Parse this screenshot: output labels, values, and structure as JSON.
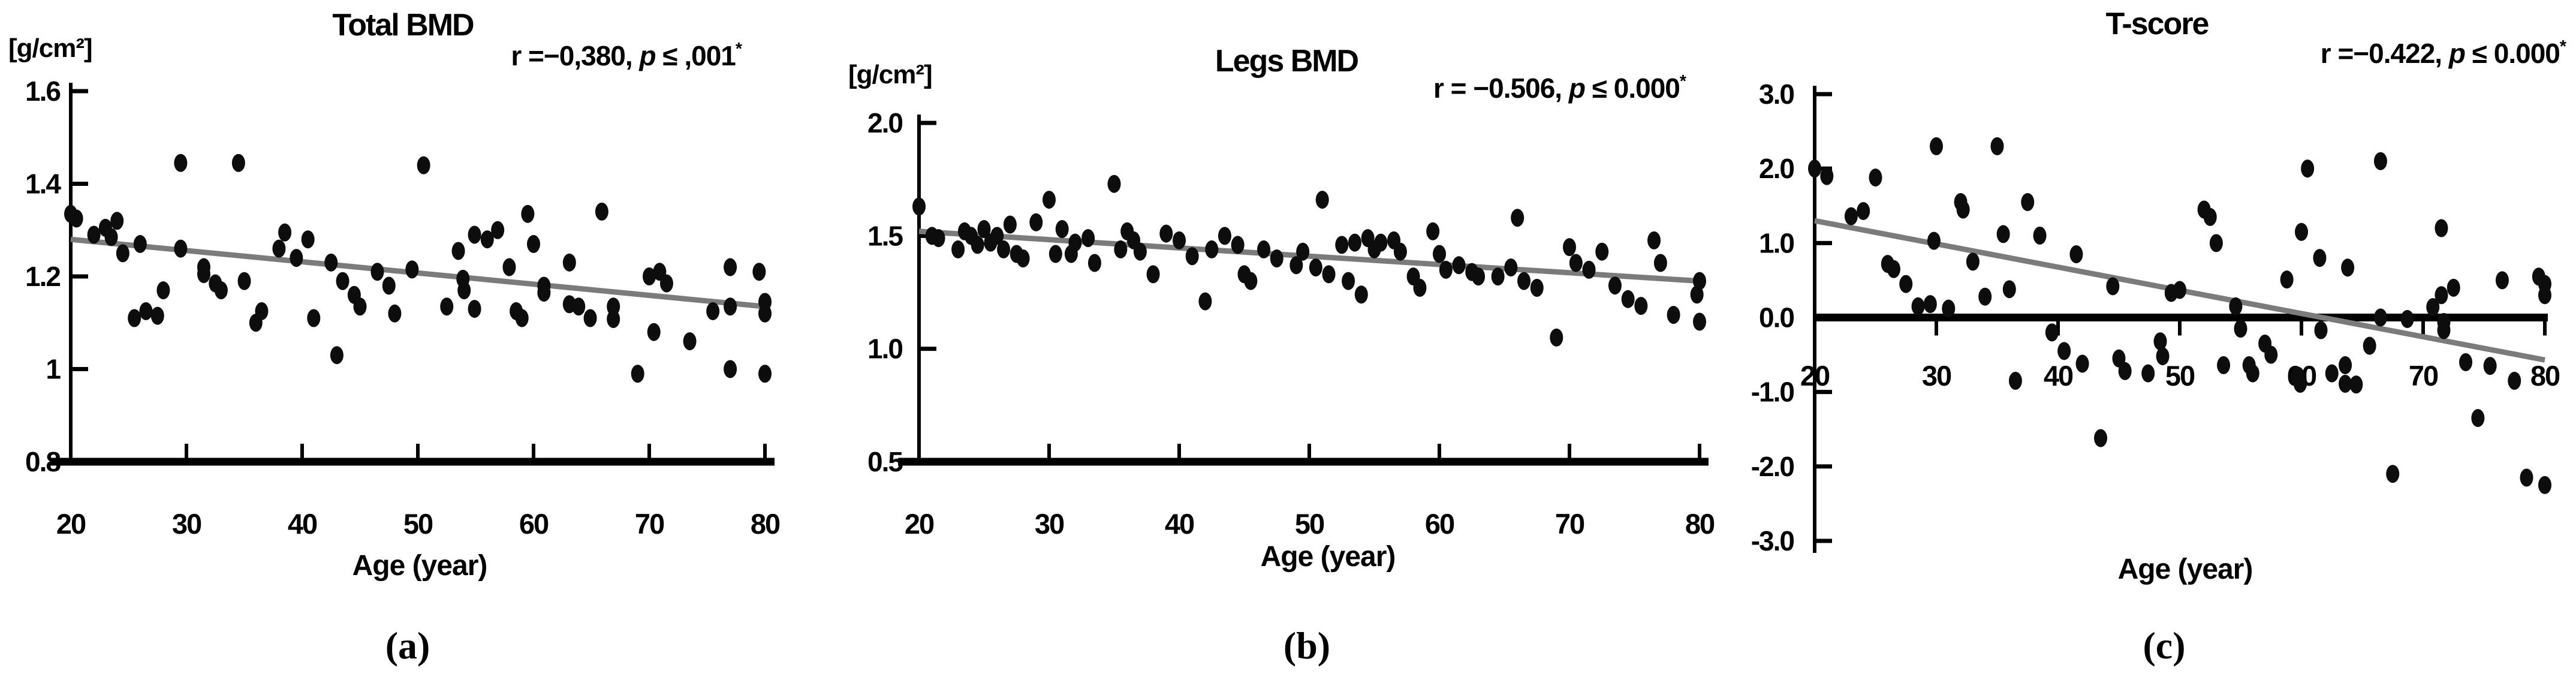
{
  "figure": {
    "background": "#ffffff",
    "dot_color": "#0d0d0d",
    "regression_color": "#7b7b7b",
    "axis_color": "#000000"
  },
  "chart_data": [
    {
      "type": "scatter",
      "id": "a",
      "title": "Total BMD",
      "unit_label": "[g/cm²]",
      "ylabel": "[g/cm²]",
      "xlabel": "Age (year)",
      "caption": "(a)",
      "annotation": {
        "prefix": "r =−0,380, ",
        "p": "p",
        "suffix": " ≤ ,001",
        "star": "*"
      },
      "xlim": [
        20,
        80
      ],
      "ylim": [
        0.8,
        1.6
      ],
      "grid": false,
      "legend": false,
      "x_ticks": [
        20,
        30,
        40,
        50,
        60,
        70,
        80
      ],
      "y_ticks": [
        {
          "v": 1.6,
          "label": "1.6"
        },
        {
          "v": 1.4,
          "label": "1.4"
        },
        {
          "v": 1.2,
          "label": "1.2"
        },
        {
          "v": 1.0,
          "label": "1"
        },
        {
          "v": 0.8,
          "label": "0.8"
        }
      ],
      "regression_line": {
        "x": [
          20,
          80
        ],
        "y": [
          1.28,
          1.135
        ]
      },
      "points": [
        [
          20,
          1.335
        ],
        [
          20.5,
          1.325
        ],
        [
          22,
          1.29
        ],
        [
          23,
          1.305
        ],
        [
          23.5,
          1.285
        ],
        [
          24,
          1.32
        ],
        [
          24.5,
          1.25
        ],
        [
          25.5,
          1.11
        ],
        [
          26,
          1.27
        ],
        [
          26.5,
          1.125
        ],
        [
          27.5,
          1.115
        ],
        [
          28,
          1.17
        ],
        [
          29.5,
          1.445
        ],
        [
          29.5,
          1.26
        ],
        [
          31.5,
          1.22
        ],
        [
          31.5,
          1.205
        ],
        [
          32.5,
          1.185
        ],
        [
          33,
          1.17
        ],
        [
          34.5,
          1.445
        ],
        [
          35,
          1.19
        ],
        [
          36,
          1.1
        ],
        [
          36.5,
          1.125
        ],
        [
          38,
          1.26
        ],
        [
          38.5,
          1.295
        ],
        [
          39.5,
          1.24
        ],
        [
          40.5,
          1.28
        ],
        [
          41,
          1.11
        ],
        [
          42.5,
          1.23
        ],
        [
          43,
          1.03
        ],
        [
          43.5,
          1.19
        ],
        [
          44.5,
          1.16
        ],
        [
          45,
          1.135
        ],
        [
          46.5,
          1.21
        ],
        [
          47.5,
          1.18
        ],
        [
          48,
          1.12
        ],
        [
          49.5,
          1.215
        ],
        [
          50.5,
          1.44
        ],
        [
          52.5,
          1.135
        ],
        [
          53.5,
          1.255
        ],
        [
          53.9,
          1.195
        ],
        [
          54,
          1.17
        ],
        [
          54.9,
          1.13
        ],
        [
          54.9,
          1.29
        ],
        [
          56,
          1.28
        ],
        [
          56.9,
          1.3
        ],
        [
          57.9,
          1.22
        ],
        [
          58.5,
          1.125
        ],
        [
          59,
          1.11
        ],
        [
          59.5,
          1.335
        ],
        [
          60,
          1.27
        ],
        [
          60.9,
          1.18
        ],
        [
          60.9,
          1.165
        ],
        [
          63.1,
          1.23
        ],
        [
          63.1,
          1.14
        ],
        [
          63.9,
          1.135
        ],
        [
          64.9,
          1.11
        ],
        [
          65.9,
          1.34
        ],
        [
          66.9,
          1.135
        ],
        [
          66.9,
          1.108
        ],
        [
          69,
          0.99
        ],
        [
          70,
          1.2
        ],
        [
          70.9,
          1.21
        ],
        [
          70.4,
          1.08
        ],
        [
          71.5,
          1.185
        ],
        [
          73.5,
          1.06
        ],
        [
          75.5,
          1.125
        ],
        [
          77,
          1.22
        ],
        [
          77,
          1.135
        ],
        [
          77,
          1.0
        ],
        [
          79.5,
          1.21
        ],
        [
          80,
          1.145
        ],
        [
          80,
          1.12
        ],
        [
          80,
          0.99
        ]
      ]
    },
    {
      "type": "scatter",
      "id": "b",
      "title": "Legs BMD",
      "unit_label": "[g/cm²]",
      "ylabel": "[g/cm²]",
      "xlabel": "Age (year)",
      "caption": "(b)",
      "annotation": {
        "prefix": "r = −0.506, ",
        "p": "p",
        "suffix": " ≤ 0.000",
        "star": "*"
      },
      "xlim": [
        20,
        80
      ],
      "ylim": [
        0.5,
        2.0
      ],
      "grid": false,
      "legend": false,
      "x_ticks": [
        20,
        30,
        40,
        50,
        60,
        70,
        80
      ],
      "y_ticks": [
        {
          "v": 2.0,
          "label": "2.0"
        },
        {
          "v": 1.5,
          "label": "1.5"
        },
        {
          "v": 1.0,
          "label": "1.0"
        },
        {
          "v": 0.5,
          "label": "0.5"
        }
      ],
      "regression_line": {
        "x": [
          20,
          80
        ],
        "y": [
          1.52,
          1.3
        ]
      },
      "points": [
        [
          20,
          1.63
        ],
        [
          21,
          1.5
        ],
        [
          21.5,
          1.49
        ],
        [
          23,
          1.44
        ],
        [
          23.5,
          1.52
        ],
        [
          24,
          1.5
        ],
        [
          24.5,
          1.46
        ],
        [
          25,
          1.53
        ],
        [
          25.5,
          1.47
        ],
        [
          26,
          1.5
        ],
        [
          26.5,
          1.44
        ],
        [
          27,
          1.55
        ],
        [
          27.5,
          1.42
        ],
        [
          28,
          1.4
        ],
        [
          29,
          1.56
        ],
        [
          30,
          1.66
        ],
        [
          30.5,
          1.42
        ],
        [
          31,
          1.53
        ],
        [
          31.7,
          1.42
        ],
        [
          32,
          1.47
        ],
        [
          33,
          1.49
        ],
        [
          33.5,
          1.38
        ],
        [
          35,
          1.73
        ],
        [
          35.5,
          1.44
        ],
        [
          36,
          1.52
        ],
        [
          36.5,
          1.48
        ],
        [
          37,
          1.43
        ],
        [
          38,
          1.33
        ],
        [
          39,
          1.51
        ],
        [
          40,
          1.48
        ],
        [
          41,
          1.41
        ],
        [
          42,
          1.21
        ],
        [
          42.5,
          1.44
        ],
        [
          43.5,
          1.5
        ],
        [
          44.5,
          1.46
        ],
        [
          45,
          1.33
        ],
        [
          45.5,
          1.3
        ],
        [
          46.5,
          1.44
        ],
        [
          47.5,
          1.4
        ],
        [
          49,
          1.37
        ],
        [
          49.5,
          1.43
        ],
        [
          50.5,
          1.36
        ],
        [
          51,
          1.66
        ],
        [
          51.5,
          1.33
        ],
        [
          52.5,
          1.46
        ],
        [
          53,
          1.3
        ],
        [
          53.5,
          1.47
        ],
        [
          54,
          1.24
        ],
        [
          54.5,
          1.49
        ],
        [
          55,
          1.44
        ],
        [
          55.5,
          1.47
        ],
        [
          56.5,
          1.48
        ],
        [
          57,
          1.43
        ],
        [
          58,
          1.32
        ],
        [
          58.5,
          1.27
        ],
        [
          59.5,
          1.52
        ],
        [
          60,
          1.42
        ],
        [
          60.5,
          1.35
        ],
        [
          61.5,
          1.37
        ],
        [
          62.5,
          1.34
        ],
        [
          63,
          1.32
        ],
        [
          64.5,
          1.32
        ],
        [
          65.5,
          1.36
        ],
        [
          66,
          1.58
        ],
        [
          66.5,
          1.3
        ],
        [
          67.5,
          1.27
        ],
        [
          69,
          1.05
        ],
        [
          70,
          1.45
        ],
        [
          70.5,
          1.38
        ],
        [
          71.5,
          1.35
        ],
        [
          72.5,
          1.43
        ],
        [
          73.5,
          1.28
        ],
        [
          74.5,
          1.22
        ],
        [
          75.5,
          1.19
        ],
        [
          76.5,
          1.48
        ],
        [
          77,
          1.38
        ],
        [
          78,
          1.15
        ],
        [
          79.8,
          1.24
        ],
        [
          80,
          1.3
        ],
        [
          80,
          1.12
        ]
      ]
    },
    {
      "type": "scatter",
      "id": "c",
      "title": "T-score",
      "unit_label": "",
      "ylabel": "",
      "xlabel": "Age (year)",
      "caption": "(c)",
      "annotation": {
        "prefix": "r =−0.422, ",
        "p": "p",
        "suffix": " ≤ 0.000",
        "star": "*"
      },
      "xlim": [
        20,
        80
      ],
      "ylim": [
        -3.0,
        3.0
      ],
      "grid": false,
      "legend": false,
      "zero_axis": true,
      "x_ticks": [
        20,
        30,
        40,
        50,
        60,
        70,
        80
      ],
      "y_ticks": [
        {
          "v": 3.0,
          "label": "3.0"
        },
        {
          "v": 2.0,
          "label": "2.0"
        },
        {
          "v": 1.0,
          "label": "1.0"
        },
        {
          "v": 0.0,
          "label": "0.0"
        },
        {
          "v": -1.0,
          "label": "-1.0"
        },
        {
          "v": -2.0,
          "label": "-2.0"
        },
        {
          "v": -3.0,
          "label": "-3.0"
        }
      ],
      "regression_line": {
        "x": [
          20,
          80
        ],
        "y": [
          1.3,
          -0.57
        ]
      },
      "points": [
        [
          20,
          2.0
        ],
        [
          21,
          1.9
        ],
        [
          23,
          1.36
        ],
        [
          24,
          1.43
        ],
        [
          25,
          1.88
        ],
        [
          26,
          0.72
        ],
        [
          26.5,
          0.65
        ],
        [
          27.5,
          0.45
        ],
        [
          28.5,
          0.15
        ],
        [
          29.5,
          0.18
        ],
        [
          29.8,
          1.03
        ],
        [
          30,
          2.3
        ],
        [
          31,
          0.12
        ],
        [
          32,
          1.55
        ],
        [
          32.2,
          1.45
        ],
        [
          33,
          0.75
        ],
        [
          34,
          0.28
        ],
        [
          35,
          2.3
        ],
        [
          35.5,
          1.12
        ],
        [
          36,
          0.38
        ],
        [
          36.5,
          -0.85
        ],
        [
          37.5,
          1.55
        ],
        [
          38.5,
          1.1
        ],
        [
          39.5,
          -0.2
        ],
        [
          40.5,
          -0.45
        ],
        [
          41.5,
          0.85
        ],
        [
          42,
          -0.62
        ],
        [
          43.5,
          -1.62
        ],
        [
          44.5,
          0.42
        ],
        [
          45,
          -0.55
        ],
        [
          45.5,
          -0.72
        ],
        [
          47.4,
          -0.75
        ],
        [
          48.4,
          -0.32
        ],
        [
          48.6,
          -0.52
        ],
        [
          49.3,
          0.33
        ],
        [
          50,
          0.37
        ],
        [
          52,
          1.45
        ],
        [
          52.5,
          1.35
        ],
        [
          53,
          1.0
        ],
        [
          53.6,
          -0.64
        ],
        [
          54.6,
          0.15
        ],
        [
          55,
          -0.15
        ],
        [
          55.7,
          -0.64
        ],
        [
          56,
          -0.75
        ],
        [
          57,
          -0.35
        ],
        [
          57.5,
          -0.5
        ],
        [
          58.8,
          0.51
        ],
        [
          59.7,
          -0.78
        ],
        [
          59.9,
          -0.89
        ],
        [
          60,
          1.15
        ],
        [
          60.5,
          2.0
        ],
        [
          61.5,
          0.8
        ],
        [
          61.6,
          -0.17
        ],
        [
          62.5,
          -0.75
        ],
        [
          63.6,
          -0.64
        ],
        [
          63.6,
          -0.89
        ],
        [
          63.8,
          0.67
        ],
        [
          64.5,
          -0.9
        ],
        [
          65.6,
          -0.38
        ],
        [
          66.5,
          2.1
        ],
        [
          66.5,
          0.0
        ],
        [
          67.5,
          -2.1
        ],
        [
          68.7,
          -0.02
        ],
        [
          70.8,
          0.14
        ],
        [
          71.5,
          1.2
        ],
        [
          71.5,
          0.3
        ],
        [
          71.7,
          -0.06
        ],
        [
          71.7,
          -0.17
        ],
        [
          72.5,
          0.4
        ],
        [
          73.5,
          -0.6
        ],
        [
          74.5,
          -1.35
        ],
        [
          75.5,
          -0.65
        ],
        [
          76.5,
          0.5
        ],
        [
          77.5,
          -0.85
        ],
        [
          78.5,
          -2.15
        ],
        [
          79.5,
          0.55
        ],
        [
          80,
          0.45
        ],
        [
          80,
          0.3
        ],
        [
          80,
          -2.25
        ]
      ]
    }
  ]
}
